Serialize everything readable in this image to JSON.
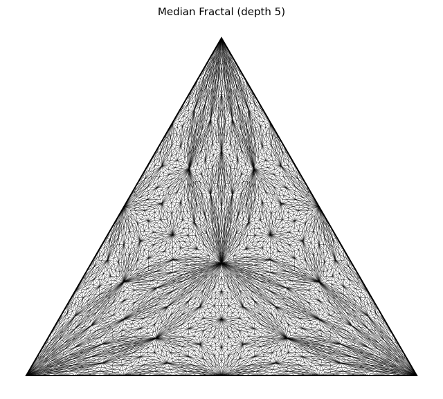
{
  "figure": {
    "title": "Median Fractal (depth 5)",
    "depth": 5,
    "subdivision": "median (centroid) subdivision of a triangle",
    "line_color": "#000000",
    "background": "#ffffff"
  }
}
